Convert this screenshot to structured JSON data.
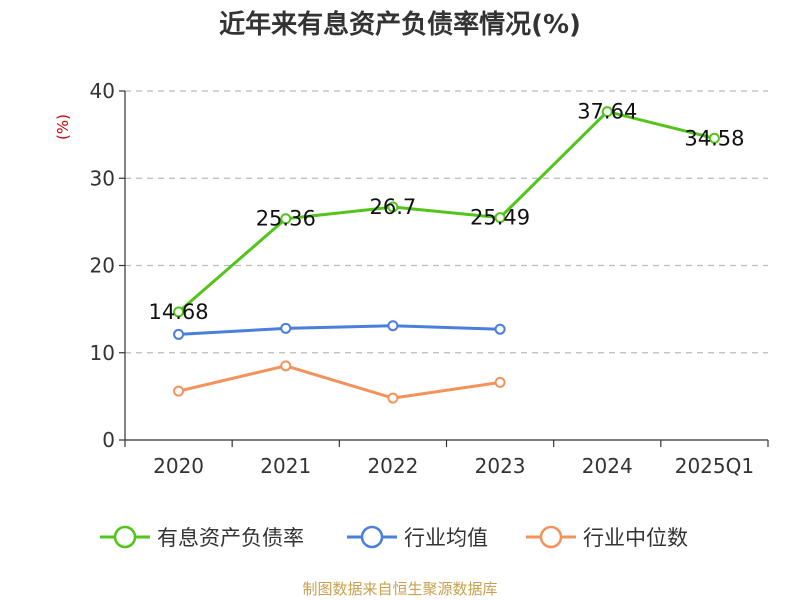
{
  "chart_data": {
    "type": "line",
    "title": "近年来有息资产负债率情况(%)",
    "ylabel": "(%)",
    "ylim": [
      0,
      40
    ],
    "yticks": [
      0,
      10,
      20,
      30,
      40
    ],
    "grid": true,
    "legend_position": "bottom",
    "categories": [
      "2020",
      "2021",
      "2022",
      "2023",
      "2024",
      "2025Q1"
    ],
    "series": [
      {
        "name": "有息资产负债率",
        "color": "#52c41a",
        "values": [
          14.68,
          25.36,
          26.7,
          25.49,
          37.64,
          34.58
        ],
        "labels": [
          "14.68",
          "25.36",
          "26.7",
          "25.49",
          "37.64",
          "34.58"
        ]
      },
      {
        "name": "行业均值",
        "color": "#4a7fdc",
        "values": [
          12.1,
          12.8,
          13.1,
          12.7,
          null,
          null
        ]
      },
      {
        "name": "行业中位数",
        "color": "#f4925c",
        "values": [
          5.6,
          8.5,
          4.8,
          6.6,
          null,
          null
        ]
      }
    ]
  },
  "source": "制图数据来自恒生聚源数据库"
}
